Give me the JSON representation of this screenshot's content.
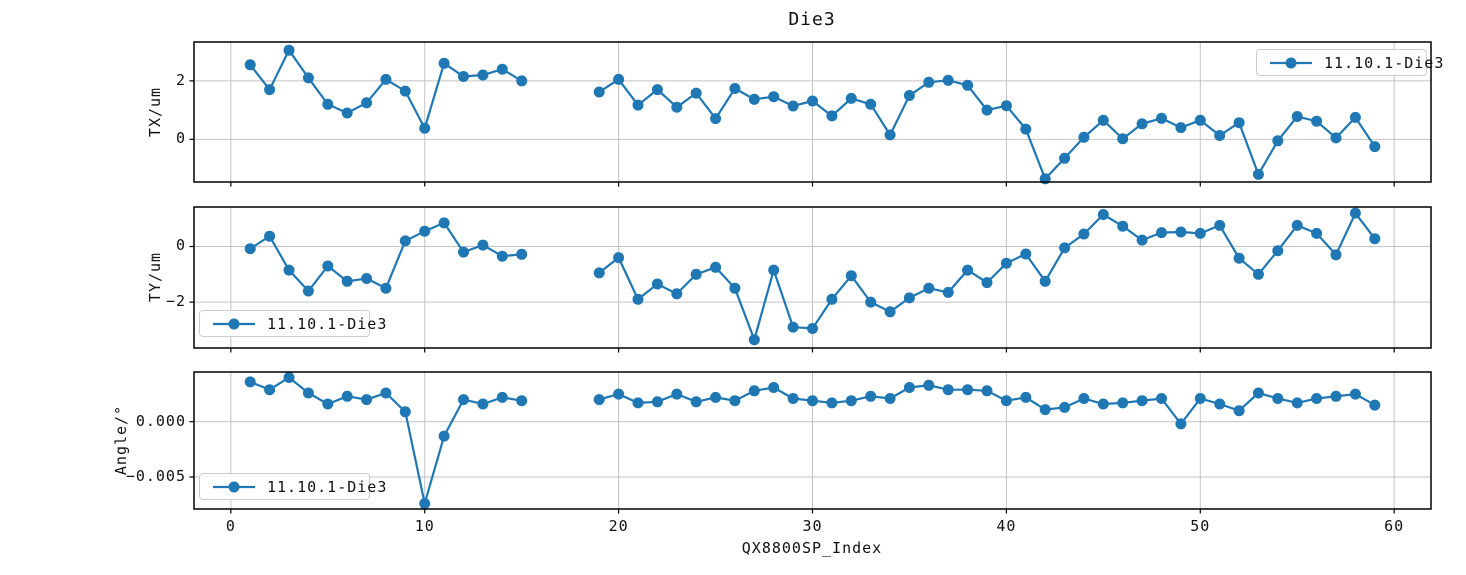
{
  "title": "Die3",
  "x_axis": {
    "label": "QX8800SP_Index",
    "ticks": [
      0,
      10,
      20,
      30,
      40,
      50,
      60
    ],
    "tick_labels": [
      "0",
      "10",
      "20",
      "30",
      "40",
      "50",
      "60"
    ],
    "xlim": [
      -1.9,
      61.9
    ]
  },
  "style": {
    "line_color": "#1f77b4",
    "grid_color": "#c2c2c2",
    "spine_color": "#000000",
    "text_color": "#111111"
  },
  "chart_data": [
    {
      "type": "line",
      "ylabel": "TX/um",
      "legend": {
        "label": "11.10.1-Die3",
        "position": "top-right"
      },
      "grid": true,
      "marker": "circle",
      "ylim": [
        -1.46,
        3.33
      ],
      "yticks": [
        0,
        2
      ],
      "ytick_labels": [
        "0",
        "2"
      ],
      "x": [
        1,
        2,
        3,
        4,
        5,
        6,
        7,
        8,
        9,
        10,
        11,
        12,
        13,
        14,
        15,
        19,
        20,
        21,
        22,
        23,
        24,
        25,
        26,
        27,
        28,
        29,
        30,
        31,
        32,
        33,
        34,
        35,
        36,
        37,
        38,
        39,
        40,
        41,
        42,
        43,
        44,
        45,
        46,
        47,
        48,
        49,
        50,
        51,
        52,
        53,
        54,
        55,
        56,
        57,
        58,
        59
      ],
      "y": [
        2.55,
        1.7,
        3.05,
        2.1,
        1.2,
        0.9,
        1.25,
        2.05,
        1.65,
        0.38,
        2.6,
        2.15,
        2.2,
        2.4,
        2.0,
        1.62,
        2.05,
        1.17,
        1.7,
        1.1,
        1.58,
        0.71,
        1.74,
        1.37,
        1.46,
        1.14,
        1.31,
        0.8,
        1.4,
        1.2,
        0.15,
        1.5,
        1.95,
        2.02,
        1.85,
        1.0,
        1.15,
        0.35,
        -1.35,
        -0.65,
        0.07,
        0.65,
        0.02,
        0.53,
        0.72,
        0.4,
        0.65,
        0.13,
        0.57,
        -1.2,
        -0.05,
        0.78,
        0.62,
        0.05,
        0.75,
        -0.25
      ]
    },
    {
      "type": "line",
      "ylabel": "TY/um",
      "legend": {
        "label": "11.10.1-Die3",
        "position": "bottom-left"
      },
      "grid": true,
      "marker": "circle",
      "ylim": [
        -3.65,
        1.42
      ],
      "yticks": [
        -2,
        0
      ],
      "ytick_labels": [
        "−2",
        "0"
      ],
      "x": [
        1,
        2,
        3,
        4,
        5,
        6,
        7,
        8,
        9,
        10,
        11,
        12,
        13,
        14,
        15,
        19,
        20,
        21,
        22,
        23,
        24,
        25,
        26,
        27,
        28,
        29,
        30,
        31,
        32,
        33,
        34,
        35,
        36,
        37,
        38,
        39,
        40,
        41,
        42,
        43,
        44,
        45,
        46,
        47,
        48,
        49,
        50,
        51,
        52,
        53,
        54,
        55,
        56,
        57,
        58,
        59
      ],
      "y": [
        -0.08,
        0.37,
        -0.85,
        -1.6,
        -0.7,
        -1.25,
        -1.15,
        -1.5,
        0.2,
        0.55,
        0.85,
        -0.2,
        0.05,
        -0.35,
        -0.28,
        -0.95,
        -0.4,
        -1.9,
        -1.35,
        -1.7,
        -1.0,
        -0.75,
        -1.5,
        -3.35,
        -0.85,
        -2.9,
        -2.95,
        -1.9,
        -1.05,
        -2.0,
        -2.35,
        -1.85,
        -1.5,
        -1.65,
        -0.85,
        -1.3,
        -0.6,
        -0.27,
        -1.25,
        -0.05,
        0.45,
        1.15,
        0.73,
        0.23,
        0.5,
        0.52,
        0.47,
        0.76,
        -0.42,
        -1.0,
        -0.15,
        0.76,
        0.47,
        -0.3,
        1.2,
        0.28
      ]
    },
    {
      "type": "line",
      "ylabel": "Angle/°",
      "legend": {
        "label": "11.10.1-Die3",
        "position": "bottom-left"
      },
      "grid": true,
      "marker": "circle",
      "ylim": [
        -0.0079,
        0.0045
      ],
      "yticks": [
        -0.005,
        0
      ],
      "ytick_labels": [
        "−0.005",
        "0.000"
      ],
      "x": [
        1,
        2,
        3,
        4,
        5,
        6,
        7,
        8,
        9,
        10,
        11,
        12,
        13,
        14,
        15,
        19,
        20,
        21,
        22,
        23,
        24,
        25,
        26,
        27,
        28,
        29,
        30,
        31,
        32,
        33,
        34,
        35,
        36,
        37,
        38,
        39,
        40,
        41,
        42,
        43,
        44,
        45,
        46,
        47,
        48,
        49,
        50,
        51,
        52,
        53,
        54,
        55,
        56,
        57,
        58,
        59
      ],
      "y": [
        0.0036,
        0.0029,
        0.004,
        0.0026,
        0.0016,
        0.0023,
        0.002,
        0.0026,
        0.0009,
        -0.0074,
        -0.0013,
        0.002,
        0.0016,
        0.0022,
        0.0019,
        0.002,
        0.0025,
        0.0017,
        0.0018,
        0.0025,
        0.0018,
        0.0022,
        0.0019,
        0.0028,
        0.0031,
        0.0021,
        0.0019,
        0.0017,
        0.0019,
        0.0023,
        0.0021,
        0.0031,
        0.0033,
        0.0029,
        0.0029,
        0.0028,
        0.0019,
        0.0022,
        0.0011,
        0.0013,
        0.0021,
        0.0016,
        0.0017,
        0.0019,
        0.0021,
        -0.0002,
        0.0021,
        0.0016,
        0.001,
        0.0026,
        0.0021,
        0.0017,
        0.0021,
        0.0023,
        0.0025,
        0.0015
      ]
    }
  ]
}
